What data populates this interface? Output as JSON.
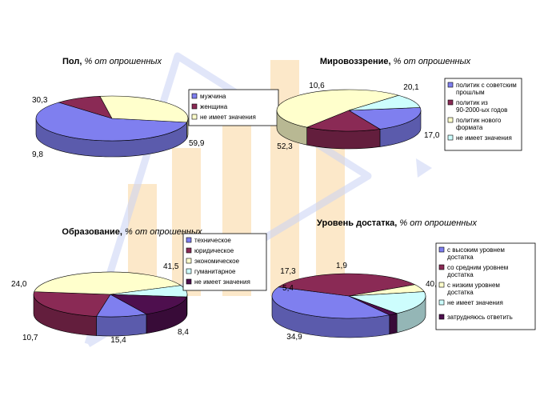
{
  "colors": {
    "blue": "#7F7FEF",
    "maroon": "#8A2A55",
    "cream": "#FFFFCC",
    "cyan": "#CDFDFD",
    "dark_purple": "#4E0F4E",
    "background_arrow": "#C8D2F4",
    "background_bars": "#F9D69C"
  },
  "chart_data": [
    {
      "type": "pie",
      "title": "Пол,",
      "subtitle": "% от опрошенных",
      "categories": [
        "мужчина",
        "женщина",
        "не имеет значения"
      ],
      "values": [
        59.9,
        9.8,
        30.3
      ],
      "data_labels": [
        "59,9",
        "9,8",
        "30,3"
      ],
      "colors": [
        "#7F7FEF",
        "#8A2A55",
        "#FFFFCC"
      ],
      "legend": "right"
    },
    {
      "type": "pie",
      "title": "Мировоззрение,",
      "subtitle": "% от опрошенных",
      "categories": [
        "политик с советским прошлым",
        "политик из 90-2000-ых годов",
        "политик нового формата",
        "не имеет значения"
      ],
      "values": [
        20.1,
        17.0,
        52.3,
        10.6
      ],
      "data_labels": [
        "20,1",
        "17,0",
        "52,3",
        "10,6"
      ],
      "colors": [
        "#7F7FEF",
        "#8A2A55",
        "#FFFFCC",
        "#CDFDFD"
      ],
      "legend": "right"
    },
    {
      "type": "pie",
      "title": "Образование,",
      "subtitle": "% от опрошенных",
      "categories": [
        "техническое",
        "юридическое",
        "экономическое",
        "гуманитарное",
        "не имеет значения"
      ],
      "values": [
        10.7,
        24.0,
        41.5,
        8.4,
        15.4
      ],
      "data_labels": [
        "10,7",
        "24,0",
        "41,5",
        "8,4",
        "15,4"
      ],
      "colors": [
        "#7F7FEF",
        "#8A2A55",
        "#FFFFCC",
        "#CDFDFD",
        "#4E0F4E"
      ],
      "legend": "top-right"
    },
    {
      "type": "pie",
      "title": "Уровень достатка,",
      "subtitle": "% от опрошенных",
      "categories": [
        "с высоким уровнем достатка",
        "со средним уровнем достатка",
        "с низким уровнем достатка",
        "не имеет значения",
        "затрудняюсь ответить"
      ],
      "values": [
        40.5,
        34.9,
        5.4,
        17.3,
        1.9
      ],
      "data_labels": [
        "40,5",
        "34,9",
        "5,4",
        "17,3",
        "1,9"
      ],
      "colors": [
        "#7F7FEF",
        "#8A2A55",
        "#FFFFCC",
        "#CDFDFD",
        "#4E0F4E"
      ],
      "legend": "right"
    }
  ]
}
